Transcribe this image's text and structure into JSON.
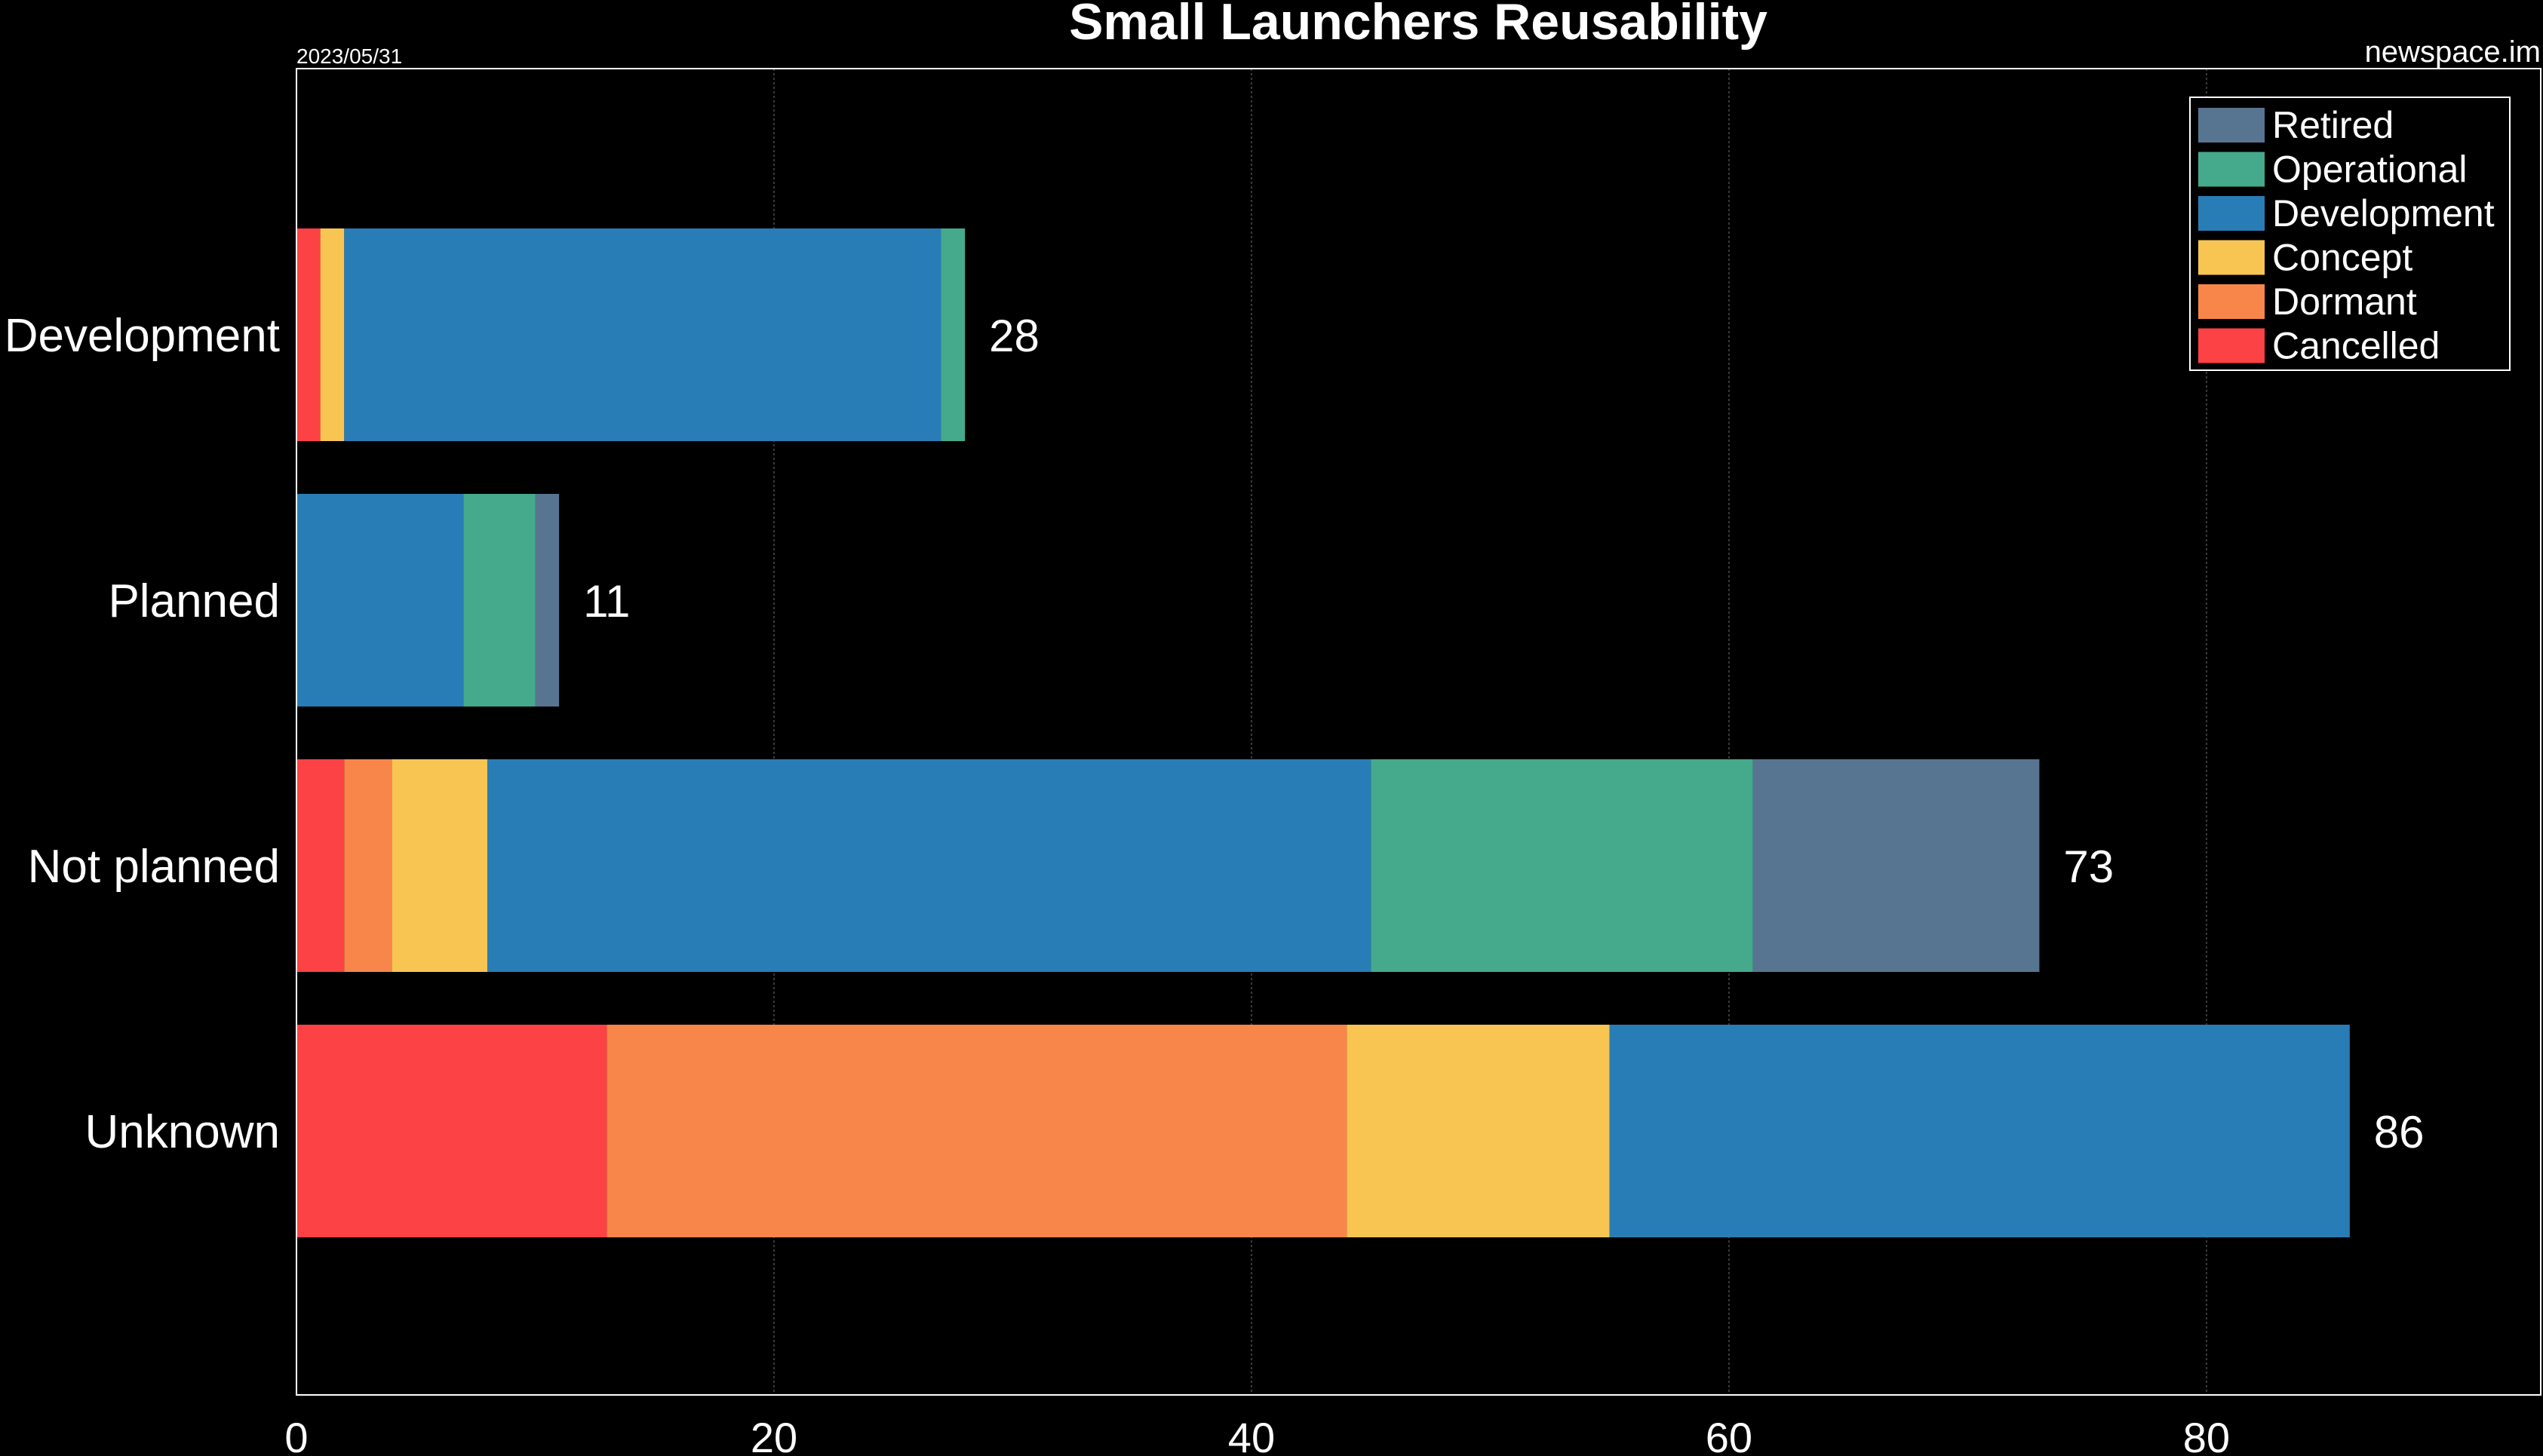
{
  "header": {
    "title": "Small Launchers Reusability",
    "date": "2023/05/31",
    "site": "newspace.im"
  },
  "chart_data": {
    "type": "bar",
    "orientation": "horizontal",
    "stacked": true,
    "title": "Small Launchers Reusability",
    "xlabel": "",
    "ylabel": "",
    "xlim": [
      0,
      94
    ],
    "x_ticks": [
      0,
      20,
      40,
      60,
      80
    ],
    "grid": true,
    "legend_position": "top-right",
    "categories": [
      "Development",
      "Planned",
      "Not planned",
      "Unknown"
    ],
    "totals": [
      28,
      11,
      73,
      86
    ],
    "series": [
      {
        "name": "Cancelled",
        "color": "#fc4244",
        "values": [
          1,
          0,
          2,
          13
        ]
      },
      {
        "name": "Dormant",
        "color": "#f8864a",
        "values": [
          0,
          0,
          2,
          31
        ]
      },
      {
        "name": "Concept",
        "color": "#f8c552",
        "values": [
          1,
          0,
          4,
          11
        ]
      },
      {
        "name": "Development",
        "color": "#297db6",
        "values": [
          25,
          7,
          37,
          31
        ]
      },
      {
        "name": "Operational",
        "color": "#44aa8b",
        "values": [
          1,
          3,
          16,
          0
        ]
      },
      {
        "name": "Retired",
        "color": "#577590",
        "values": [
          0,
          1,
          12,
          0
        ]
      }
    ],
    "legend_order": [
      "Retired",
      "Operational",
      "Development",
      "Concept",
      "Dormant",
      "Cancelled"
    ]
  }
}
